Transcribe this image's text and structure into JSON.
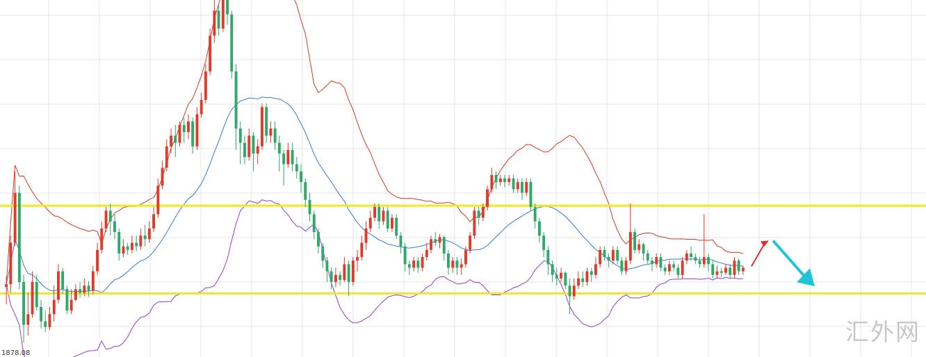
{
  "chart_data": {
    "type": "candlestick",
    "price_readout": "1878.08",
    "watermark": "汇外网",
    "ylim": [
      1878,
      1928
    ],
    "colors": {
      "up": "#dc3c2c",
      "down": "#2fa86a",
      "bb_upper": "#d23a26",
      "bb_middle": "#3a77d8",
      "bb_lower": "#8f3fd0",
      "level": "#f2e62a",
      "grid": "#e4e4e4",
      "arrow_up": "#e03030",
      "arrow_down": "#1fc4d6"
    },
    "levels": [
      1899.2,
      1886.9
    ],
    "candles": [
      [
        1887.8,
        1888.2,
        1885.4,
        1889.3
      ],
      [
        1888.2,
        1894.0,
        1887.0,
        1895.0
      ],
      [
        1894.0,
        1901.0,
        1893.5,
        1904.0
      ],
      [
        1901.0,
        1888.5,
        1887.5,
        1902.0
      ],
      [
        1888.5,
        1882.5,
        1880.0,
        1889.5
      ],
      [
        1882.5,
        1884.0,
        1881.0,
        1887.0
      ],
      [
        1884.0,
        1888.5,
        1883.5,
        1890.0
      ],
      [
        1888.5,
        1885.0,
        1884.5,
        1889.5
      ],
      [
        1885.0,
        1883.0,
        1882.0,
        1886.0
      ],
      [
        1883.0,
        1882.2,
        1881.5,
        1884.5
      ],
      [
        1882.2,
        1884.0,
        1881.8,
        1885.0
      ],
      [
        1884.0,
        1886.0,
        1883.0,
        1888.0
      ],
      [
        1886.0,
        1890.0,
        1885.5,
        1891.0
      ],
      [
        1890.0,
        1887.5,
        1886.8,
        1890.5
      ],
      [
        1887.5,
        1884.5,
        1884.0,
        1888.0
      ],
      [
        1884.5,
        1886.0,
        1884.0,
        1887.5
      ],
      [
        1886.0,
        1887.5,
        1885.8,
        1888.2
      ],
      [
        1887.5,
        1887.0,
        1886.3,
        1888.5
      ],
      [
        1887.0,
        1888.0,
        1886.5,
        1889.0
      ],
      [
        1888.0,
        1887.3,
        1886.4,
        1888.6
      ],
      [
        1887.3,
        1890.0,
        1886.8,
        1890.8
      ],
      [
        1890.0,
        1893.0,
        1889.5,
        1894.0
      ],
      [
        1893.0,
        1896.0,
        1892.5,
        1897.0
      ],
      [
        1896.0,
        1898.5,
        1895.5,
        1899.0
      ],
      [
        1898.5,
        1897.0,
        1895.0,
        1899.5
      ],
      [
        1897.0,
        1895.5,
        1894.5,
        1898.0
      ],
      [
        1895.5,
        1892.5,
        1891.5,
        1896.0
      ],
      [
        1892.5,
        1893.5,
        1892.0,
        1894.5
      ],
      [
        1893.5,
        1893.0,
        1892.3,
        1894.0
      ],
      [
        1893.0,
        1894.0,
        1892.5,
        1895.0
      ],
      [
        1894.0,
        1893.5,
        1892.8,
        1895.0
      ],
      [
        1893.5,
        1895.0,
        1893.0,
        1896.0
      ],
      [
        1895.0,
        1894.5,
        1893.5,
        1896.5
      ],
      [
        1894.5,
        1896.0,
        1894.0,
        1897.0
      ],
      [
        1896.0,
        1898.0,
        1895.5,
        1899.0
      ],
      [
        1898.0,
        1902.0,
        1897.5,
        1903.0
      ],
      [
        1902.0,
        1904.5,
        1901.5,
        1905.5
      ],
      [
        1904.5,
        1907.5,
        1904.0,
        1908.5
      ],
      [
        1907.5,
        1909.0,
        1906.5,
        1910.0
      ],
      [
        1909.0,
        1908.0,
        1906.0,
        1910.5
      ],
      [
        1908.0,
        1910.5,
        1907.5,
        1911.0
      ],
      [
        1910.5,
        1909.5,
        1908.0,
        1911.5
      ],
      [
        1909.5,
        1911.0,
        1908.5,
        1912.0
      ],
      [
        1911.0,
        1907.5,
        1906.5,
        1911.5
      ],
      [
        1907.5,
        1912.0,
        1907.0,
        1913.0
      ],
      [
        1912.0,
        1914.0,
        1911.5,
        1915.0
      ],
      [
        1914.0,
        1918.0,
        1913.5,
        1919.0
      ],
      [
        1918.0,
        1923.0,
        1917.5,
        1924.0
      ],
      [
        1923.0,
        1926.5,
        1922.0,
        1928.0
      ],
      [
        1926.5,
        1924.0,
        1923.0,
        1927.5
      ],
      [
        1924.0,
        1928.0,
        1923.5,
        1929.0
      ],
      [
        1928.0,
        1926.0,
        1924.5,
        1928.5
      ],
      [
        1926.0,
        1918.0,
        1917.0,
        1926.5
      ],
      [
        1918.0,
        1910.0,
        1907.0,
        1919.0
      ],
      [
        1910.0,
        1908.0,
        1905.0,
        1911.0
      ],
      [
        1908.0,
        1906.0,
        1905.0,
        1909.0
      ],
      [
        1906.0,
        1909.0,
        1905.5,
        1910.0
      ],
      [
        1909.0,
        1906.5,
        1904.0,
        1909.5
      ],
      [
        1906.5,
        1907.5,
        1905.0,
        1908.5
      ],
      [
        1907.5,
        1913.0,
        1907.0,
        1913.5
      ],
      [
        1913.0,
        1909.0,
        1908.0,
        1913.5
      ],
      [
        1909.0,
        1910.0,
        1908.0,
        1911.0
      ],
      [
        1910.0,
        1908.0,
        1907.0,
        1911.0
      ],
      [
        1908.0,
        1906.5,
        1904.0,
        1909.0
      ],
      [
        1906.5,
        1905.0,
        1902.0,
        1907.0
      ],
      [
        1905.0,
        1907.0,
        1904.5,
        1908.0
      ],
      [
        1907.0,
        1905.0,
        1904.0,
        1908.0
      ],
      [
        1905.0,
        1904.0,
        1903.0,
        1906.0
      ],
      [
        1904.0,
        1902.5,
        1901.0,
        1905.0
      ],
      [
        1902.5,
        1900.0,
        1899.0,
        1903.0
      ],
      [
        1900.0,
        1898.0,
        1897.0,
        1901.0
      ],
      [
        1898.0,
        1895.5,
        1894.5,
        1898.5
      ],
      [
        1895.5,
        1893.5,
        1892.5,
        1896.0
      ],
      [
        1893.5,
        1891.5,
        1890.5,
        1894.0
      ],
      [
        1891.5,
        1890.0,
        1888.5,
        1892.0
      ],
      [
        1890.0,
        1888.5,
        1887.5,
        1890.5
      ],
      [
        1888.5,
        1889.5,
        1887.8,
        1890.5
      ],
      [
        1889.5,
        1888.8,
        1888.0,
        1890.0
      ],
      [
        1888.8,
        1891.0,
        1888.5,
        1892.0
      ],
      [
        1891.0,
        1888.5,
        1886.5,
        1891.5
      ],
      [
        1888.5,
        1891.5,
        1888.0,
        1892.0
      ],
      [
        1891.5,
        1892.0,
        1890.0,
        1893.0
      ],
      [
        1892.0,
        1894.0,
        1891.5,
        1895.0
      ],
      [
        1894.0,
        1896.0,
        1893.0,
        1897.0
      ],
      [
        1896.0,
        1897.5,
        1895.5,
        1898.5
      ],
      [
        1897.5,
        1899.0,
        1897.0,
        1899.5
      ],
      [
        1899.0,
        1897.0,
        1896.0,
        1899.5
      ],
      [
        1897.0,
        1898.5,
        1896.5,
        1899.0
      ],
      [
        1898.5,
        1896.0,
        1895.5,
        1899.0
      ],
      [
        1896.0,
        1897.5,
        1895.5,
        1898.0
      ],
      [
        1897.5,
        1895.0,
        1894.5,
        1898.0
      ],
      [
        1895.0,
        1893.5,
        1892.5,
        1895.5
      ],
      [
        1893.5,
        1891.0,
        1890.0,
        1894.0
      ],
      [
        1891.0,
        1890.5,
        1889.5,
        1891.5
      ],
      [
        1890.5,
        1891.5,
        1890.0,
        1892.0
      ],
      [
        1891.5,
        1890.5,
        1889.8,
        1892.0
      ],
      [
        1890.5,
        1892.0,
        1890.0,
        1892.5
      ],
      [
        1892.0,
        1893.0,
        1891.5,
        1894.0
      ],
      [
        1893.0,
        1894.5,
        1892.5,
        1895.0
      ],
      [
        1894.5,
        1894.0,
        1893.5,
        1895.5
      ],
      [
        1894.0,
        1894.8,
        1893.2,
        1895.2
      ],
      [
        1894.8,
        1892.5,
        1891.5,
        1895.0
      ],
      [
        1892.5,
        1890.5,
        1889.5,
        1893.0
      ],
      [
        1890.5,
        1891.5,
        1889.8,
        1892.0
      ],
      [
        1891.5,
        1890.5,
        1889.5,
        1892.0
      ],
      [
        1890.5,
        1891.0,
        1889.5,
        1891.8
      ],
      [
        1891.0,
        1893.0,
        1890.5,
        1893.5
      ],
      [
        1893.0,
        1895.0,
        1892.5,
        1895.5
      ],
      [
        1895.0,
        1898.5,
        1894.5,
        1899.0
      ],
      [
        1898.5,
        1897.5,
        1896.5,
        1899.0
      ],
      [
        1897.5,
        1899.0,
        1897.0,
        1899.5
      ],
      [
        1899.0,
        1901.5,
        1898.5,
        1902.0
      ],
      [
        1901.5,
        1903.5,
        1901.0,
        1904.5
      ],
      [
        1903.5,
        1902.5,
        1901.5,
        1904.0
      ],
      [
        1902.5,
        1903.0,
        1902.0,
        1903.5
      ],
      [
        1903.0,
        1902.5,
        1901.8,
        1903.5
      ],
      [
        1902.5,
        1903.0,
        1902.0,
        1903.5
      ],
      [
        1903.0,
        1901.5,
        1901.0,
        1903.5
      ],
      [
        1901.5,
        1902.5,
        1901.0,
        1903.0
      ],
      [
        1902.5,
        1901.0,
        1900.0,
        1903.0
      ],
      [
        1901.0,
        1902.5,
        1900.5,
        1903.0
      ],
      [
        1902.5,
        1899.0,
        1898.5,
        1903.0
      ],
      [
        1899.0,
        1897.0,
        1896.0,
        1899.5
      ],
      [
        1897.0,
        1895.0,
        1894.0,
        1897.5
      ],
      [
        1895.0,
        1893.0,
        1892.0,
        1895.5
      ],
      [
        1893.0,
        1891.0,
        1889.5,
        1893.5
      ],
      [
        1891.0,
        1889.5,
        1888.5,
        1891.5
      ],
      [
        1889.5,
        1889.0,
        1888.0,
        1890.5
      ],
      [
        1889.0,
        1889.8,
        1888.5,
        1890.5
      ],
      [
        1889.8,
        1888.0,
        1887.5,
        1890.0
      ],
      [
        1888.0,
        1886.5,
        1884.0,
        1889.0
      ],
      [
        1886.5,
        1888.0,
        1886.0,
        1889.0
      ],
      [
        1888.0,
        1889.0,
        1887.5,
        1890.0
      ],
      [
        1889.0,
        1888.5,
        1887.8,
        1890.0
      ],
      [
        1888.5,
        1890.0,
        1888.0,
        1890.5
      ],
      [
        1890.0,
        1889.5,
        1888.5,
        1890.5
      ],
      [
        1889.5,
        1891.0,
        1889.0,
        1892.0
      ],
      [
        1891.0,
        1893.0,
        1890.5,
        1893.5
      ],
      [
        1893.0,
        1892.0,
        1891.5,
        1893.5
      ],
      [
        1892.0,
        1891.5,
        1890.5,
        1892.5
      ],
      [
        1891.5,
        1893.0,
        1891.0,
        1893.5
      ],
      [
        1893.0,
        1891.5,
        1891.0,
        1893.5
      ],
      [
        1891.5,
        1890.0,
        1889.5,
        1892.0
      ],
      [
        1890.0,
        1891.5,
        1889.5,
        1892.0
      ],
      [
        1891.5,
        1895.5,
        1891.0,
        1899.5
      ],
      [
        1895.5,
        1893.0,
        1892.5,
        1896.0
      ],
      [
        1893.0,
        1893.8,
        1892.5,
        1894.5
      ],
      [
        1893.8,
        1892.5,
        1891.5,
        1894.0
      ],
      [
        1892.5,
        1891.5,
        1891.0,
        1893.0
      ],
      [
        1891.5,
        1891.0,
        1890.0,
        1892.0
      ],
      [
        1891.0,
        1892.0,
        1890.5,
        1892.5
      ],
      [
        1892.0,
        1890.5,
        1890.0,
        1892.5
      ],
      [
        1890.5,
        1890.0,
        1889.5,
        1891.0
      ],
      [
        1890.0,
        1891.0,
        1889.5,
        1891.5
      ],
      [
        1891.0,
        1890.5,
        1890.0,
        1891.5
      ],
      [
        1890.5,
        1889.5,
        1889.0,
        1891.0
      ],
      [
        1889.5,
        1891.5,
        1889.0,
        1892.0
      ],
      [
        1891.5,
        1892.5,
        1891.0,
        1893.0
      ],
      [
        1892.5,
        1892.0,
        1891.5,
        1893.5
      ],
      [
        1892.0,
        1891.5,
        1891.0,
        1892.5
      ],
      [
        1891.5,
        1891.0,
        1890.5,
        1892.0
      ],
      [
        1891.0,
        1892.0,
        1890.5,
        1898.0
      ],
      [
        1892.0,
        1891.0,
        1890.0,
        1892.5
      ],
      [
        1891.0,
        1889.5,
        1889.0,
        1891.5
      ],
      [
        1889.5,
        1890.0,
        1889.0,
        1890.8
      ],
      [
        1890.0,
        1889.8,
        1889.2,
        1890.5
      ],
      [
        1889.8,
        1890.5,
        1889.5,
        1891.0
      ],
      [
        1890.5,
        1889.5,
        1889.0,
        1891.0
      ],
      [
        1889.5,
        1891.5,
        1889.0,
        1892.0
      ],
      [
        1891.5,
        1890.0,
        1889.5,
        1891.8
      ],
      [
        1890.0,
        1890.5,
        1889.5,
        1890.8
      ]
    ]
  }
}
